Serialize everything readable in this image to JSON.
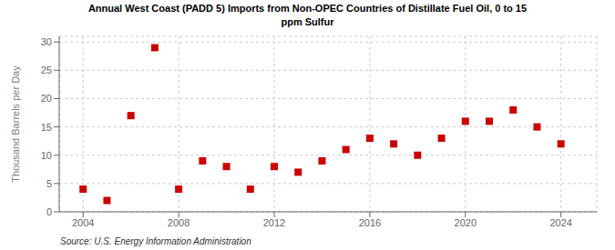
{
  "chart_data": {
    "type": "scatter",
    "title": "Annual West Coast (PADD 5) Imports from Non-OPEC Countries of Distillate Fuel Oil, 0 to 15\nppm Sulfur",
    "ylabel": "Thousand Barrels per Day",
    "annotations": [
      "Source: U.S. Energy Information Administration"
    ],
    "x": [
      2004,
      2005,
      2006,
      2007,
      2008,
      2009,
      2010,
      2011,
      2012,
      2013,
      2014,
      2015,
      2016,
      2017,
      2018,
      2019,
      2020,
      2021,
      2022,
      2023,
      2024
    ],
    "values": [
      4.0,
      2.0,
      17.0,
      29.0,
      4.0,
      9.0,
      8.0,
      4.0,
      8.0,
      7.0,
      9.0,
      11.0,
      13.0,
      12.0,
      10.0,
      13.0,
      16.0,
      16.0,
      18.0,
      15.0,
      12.0
    ],
    "color": "#cc0000",
    "marker": "square",
    "xlim": [
      2003.0,
      2025.5
    ],
    "ylim": [
      0,
      31
    ],
    "xticks": [
      2004,
      2008,
      2012,
      2016,
      2020,
      2024
    ],
    "yticks": [
      0,
      5,
      10,
      15,
      20,
      25,
      30
    ],
    "grid": true
  }
}
